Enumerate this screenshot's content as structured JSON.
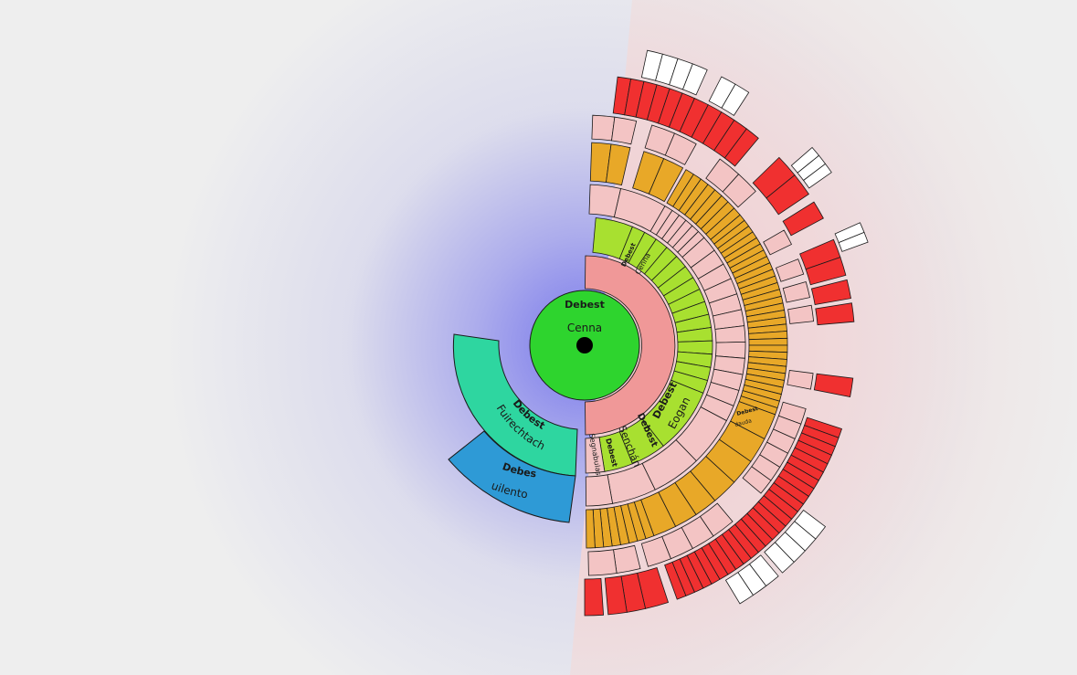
{
  "nodes": {
    "root": {
      "title": "Debest",
      "name": "Cenna"
    },
    "ancestor1": {
      "title": "Debest",
      "name": "Fuirechtach"
    },
    "ancestor2": {
      "title": "Debest",
      "name": "Cuilentom"
    },
    "child_cenna": {
      "title": "Debest",
      "name": "Cenna"
    },
    "child_eogan": {
      "title": "Debest",
      "name": "Eogan"
    },
    "child_senchan": {
      "title": "Debest",
      "name": "Senchán"
    },
    "child_segnabulas": {
      "title": "Debest",
      "name": "Segnabulas"
    },
    "grandchild_dauda": {
      "title": "Debest",
      "name": "dauda"
    }
  },
  "colors": {
    "root": "#2ed42e",
    "ancestor1": "#2ed6a0",
    "ancestor2": "#2e9ad6",
    "gen1": "#f09898",
    "gen2": "#a8e030",
    "gen2_empty": "#f3c4c4",
    "gen3": "#f3c4c4",
    "gen4": "#e8a828",
    "gen5": "#f3c4c4",
    "gen6": "#f03030",
    "gen7": "#ffffff"
  }
}
